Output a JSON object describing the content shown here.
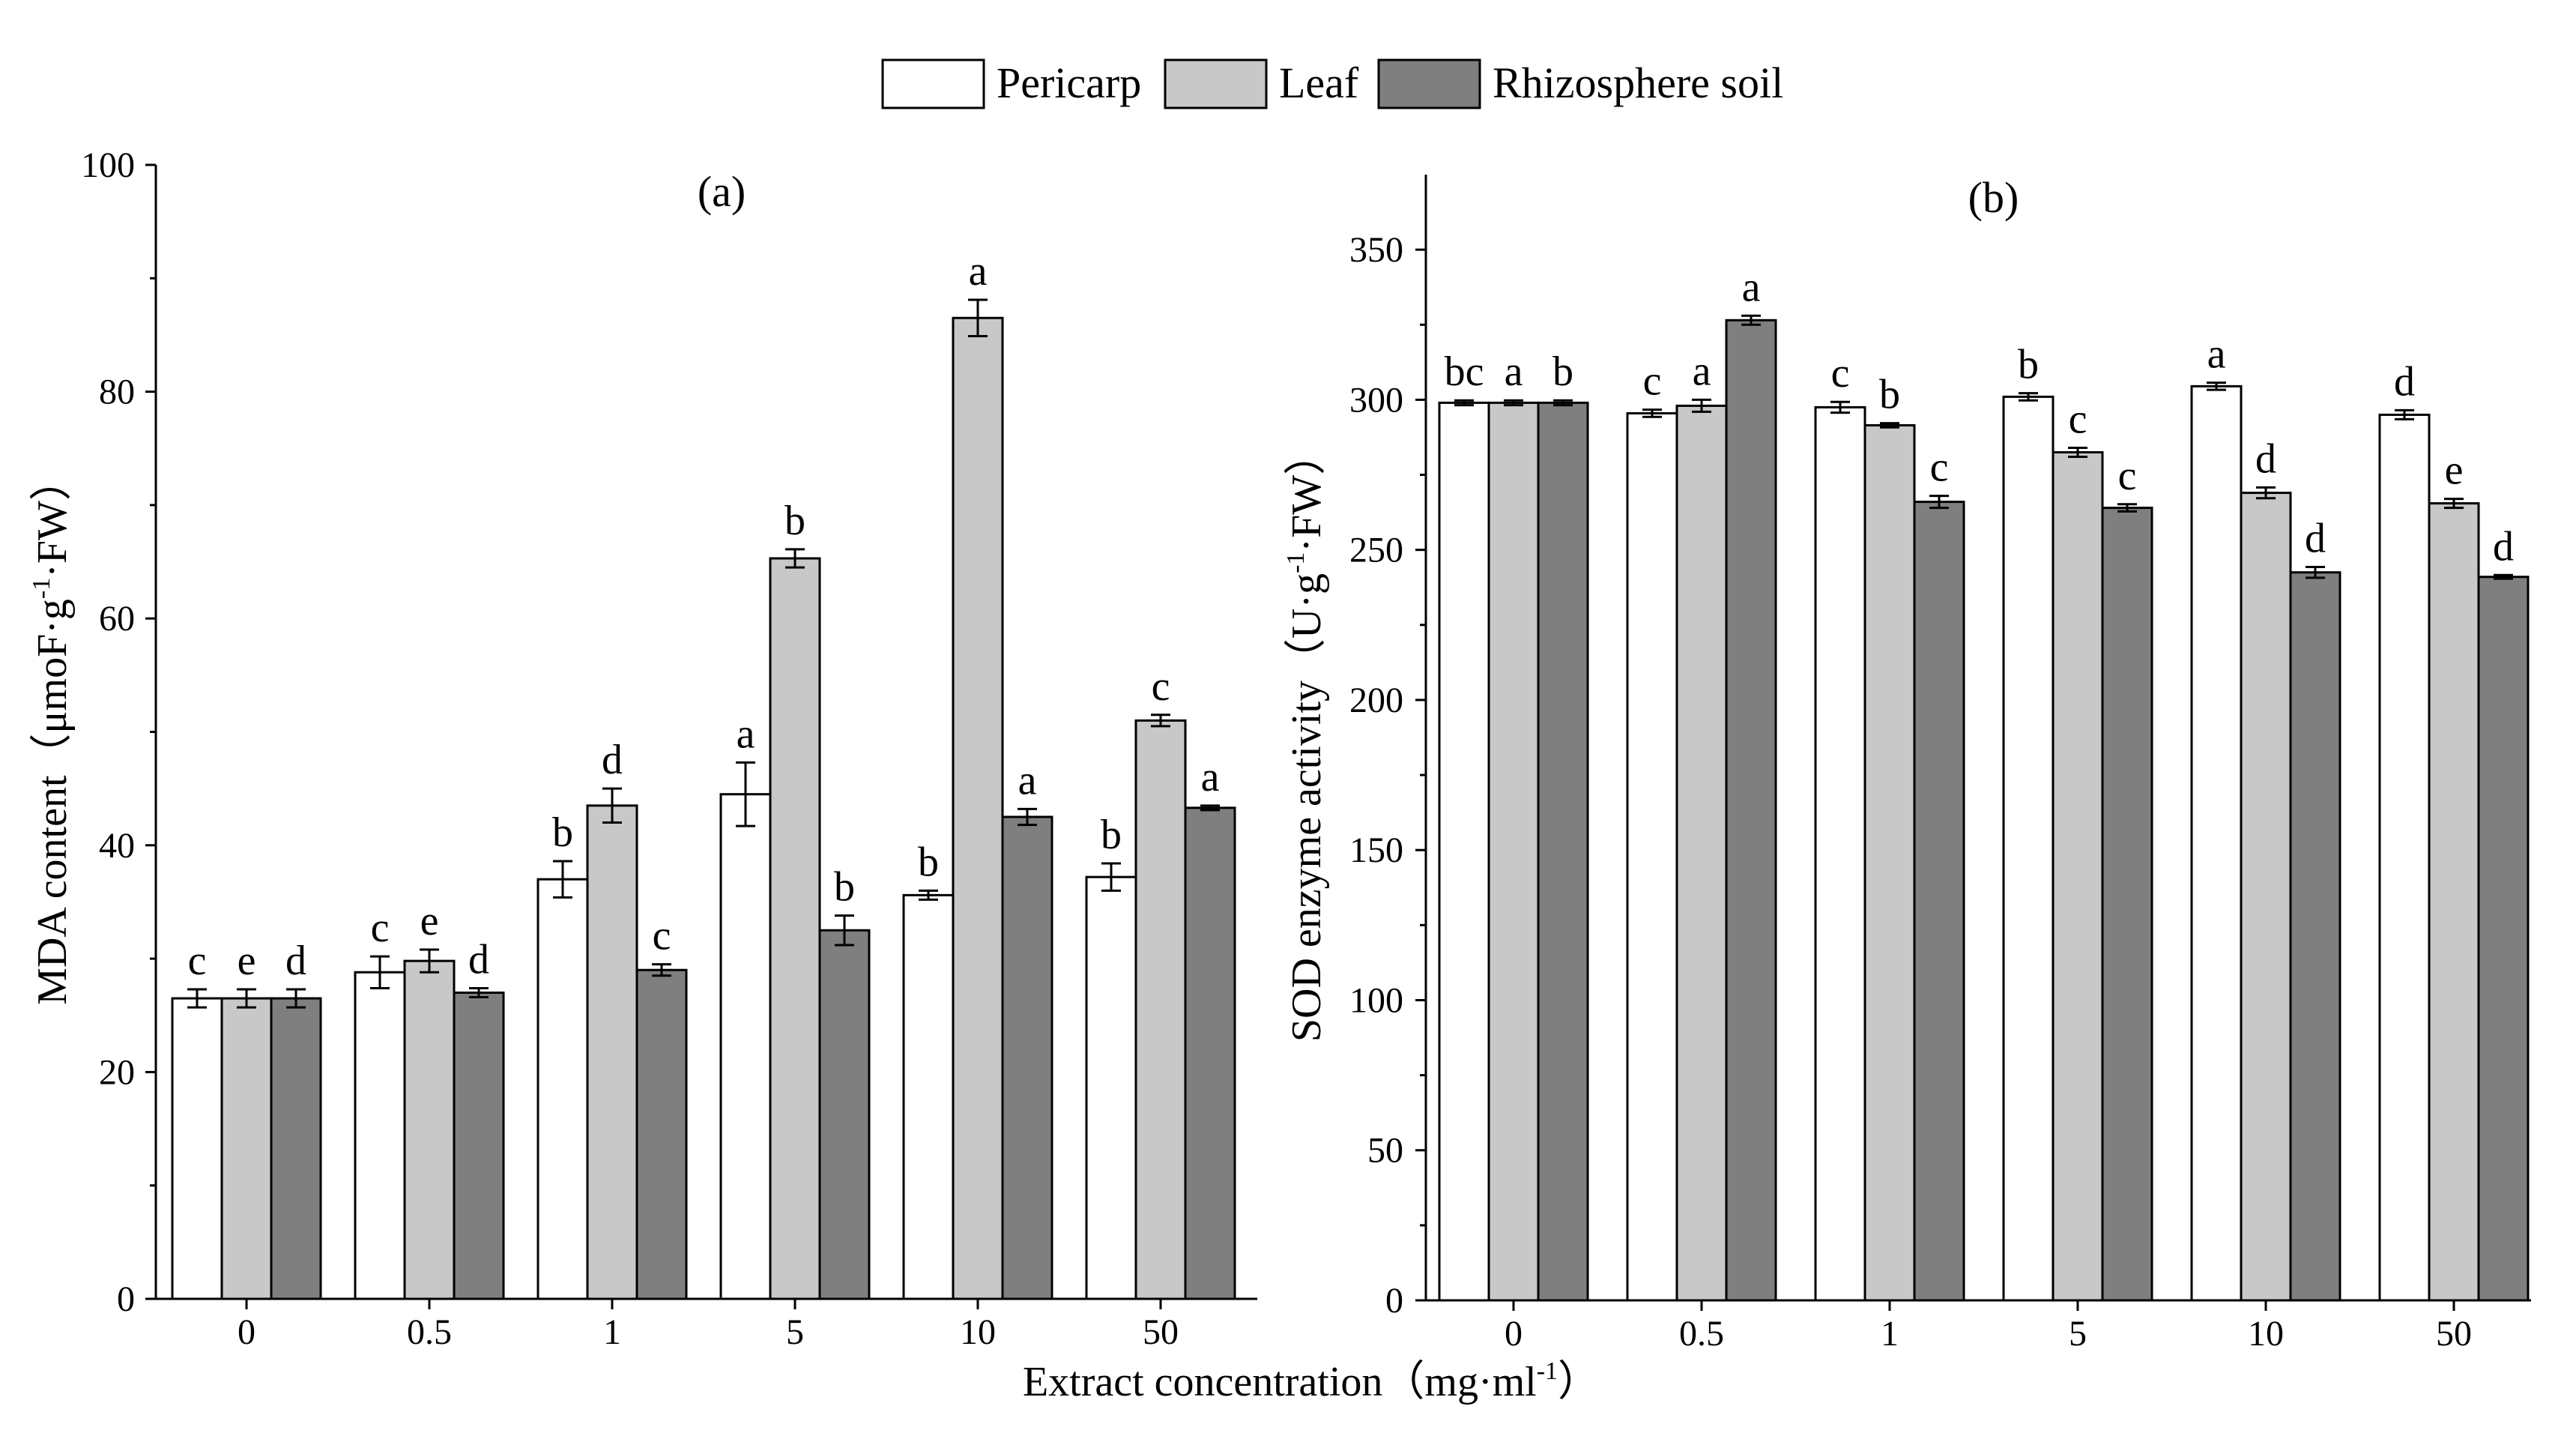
{
  "legend": {
    "items": [
      {
        "name": "Pericarp",
        "color": "#ffffff"
      },
      {
        "name": "Leaf",
        "color": "#c8c8c8"
      },
      {
        "name": "Rhizosphere soil",
        "color": "#7f7f7f"
      }
    ]
  },
  "shared_xlabel": "Extract concentration（mg·ml",
  "shared_xlabel_sup": "-1",
  "shared_xlabel_end": "）",
  "chart_data": [
    {
      "type": "bar",
      "panel_label": "(a)",
      "title": "",
      "categories": [
        "0",
        "0.5",
        "1",
        "5",
        "10",
        "50"
      ],
      "xlabel": "Extract concentration（mg·ml-1）",
      "ylabel": "MDA content（μmoF·g-1·FW）",
      "ylabel_parts": {
        "before": "MDA content（μmoF·g",
        "sup": "-1",
        "after": "·FW）"
      },
      "ylim": [
        0,
        100
      ],
      "yticks": [
        0,
        20,
        40,
        60,
        80,
        100
      ],
      "series": [
        {
          "name": "Pericarp",
          "values": [
            26.5,
            28.8,
            37.0,
            44.5,
            35.6,
            37.2
          ],
          "errors": [
            0.8,
            1.4,
            1.6,
            2.8,
            0.4,
            1.2
          ],
          "letters": [
            "c",
            "c",
            "b",
            "a",
            "b",
            "b"
          ]
        },
        {
          "name": "Leaf",
          "values": [
            26.5,
            29.8,
            43.5,
            65.3,
            86.5,
            51.0
          ],
          "errors": [
            0.8,
            1.0,
            1.5,
            0.8,
            1.6,
            0.5
          ],
          "letters": [
            "e",
            "e",
            "d",
            "b",
            "a",
            "c"
          ]
        },
        {
          "name": "Rhizosphere soil",
          "values": [
            26.5,
            27.0,
            29.0,
            32.5,
            42.5,
            43.3
          ],
          "errors": [
            0.8,
            0.4,
            0.5,
            1.3,
            0.7,
            0.2
          ],
          "letters": [
            "d",
            "d",
            "c",
            "b",
            "a",
            "a"
          ]
        }
      ]
    },
    {
      "type": "bar",
      "panel_label": "(b)",
      "title": "",
      "categories": [
        "0",
        "0.5",
        "1",
        "5",
        "10",
        "50"
      ],
      "xlabel": "Extract concentration（mg·ml-1）",
      "ylabel": "SOD enzyme activity（U·g-1·FW）",
      "ylabel_parts": {
        "before": "SOD enzyme activity（U·g",
        "sup": "-1",
        "after": "·FW）"
      },
      "ylim": [
        0,
        375
      ],
      "yticks": [
        0,
        50,
        100,
        150,
        200,
        250,
        300,
        350
      ],
      "series": [
        {
          "name": "Pericarp",
          "values": [
            299,
            295.5,
            297.5,
            301,
            304.5,
            295
          ],
          "errors": [
            0.8,
            1.2,
            1.8,
            1.2,
            1.2,
            1.5
          ],
          "letters": [
            "bc",
            "c",
            "c",
            "b",
            "a",
            "d"
          ]
        },
        {
          "name": "Leaf",
          "values": [
            299,
            298,
            291.5,
            282.5,
            269,
            265.5
          ],
          "errors": [
            0.8,
            2.0,
            0.7,
            1.5,
            1.8,
            1.5
          ],
          "letters": [
            "a",
            "a",
            "b",
            "c",
            "d",
            "e"
          ]
        },
        {
          "name": "Rhizosphere soil",
          "values": [
            299,
            326.5,
            266,
            264,
            242.5,
            241
          ],
          "errors": [
            0.8,
            1.5,
            2.0,
            1.2,
            1.8,
            0.6
          ],
          "letters": [
            "b",
            "a",
            "c",
            "c",
            "d",
            "d"
          ]
        }
      ]
    }
  ]
}
